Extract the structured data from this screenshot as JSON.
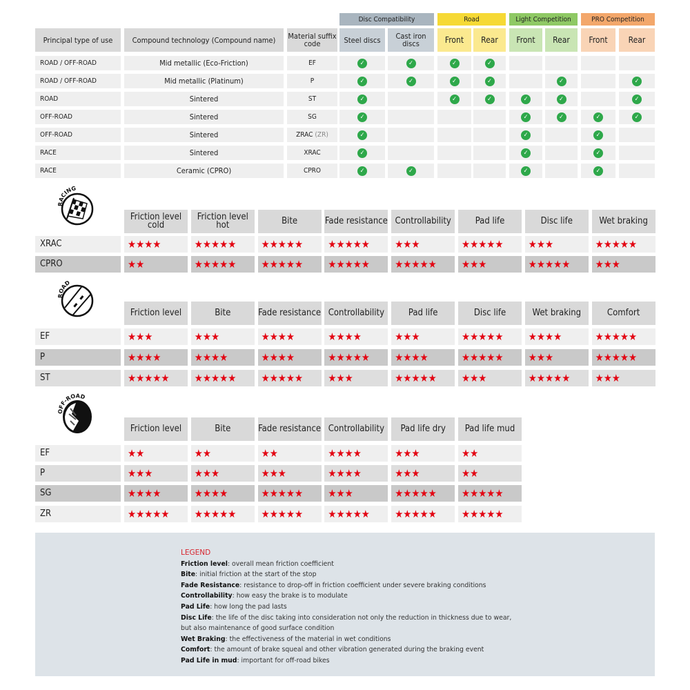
{
  "compat_table": {
    "groups": [
      {
        "label": "Disc Compatibility",
        "color": "#a9b5bf",
        "sub_color": "#c8d0d7"
      },
      {
        "label": "Road",
        "color": "#f6d935",
        "sub_color": "#fbe98f"
      },
      {
        "label": "Light Competition",
        "color": "#8fc965",
        "sub_color": "#c9e5b4"
      },
      {
        "label": "PRO Competition",
        "color": "#f3a76b",
        "sub_color": "#f9d4b6"
      }
    ],
    "headers": [
      "Principal type of use",
      "Compound technology (Compound name)",
      "Material suffix code",
      "Steel discs",
      "Cast iron discs",
      "Front",
      "Rear",
      "Front",
      "Rear",
      "Front",
      "Rear"
    ],
    "rows": [
      {
        "use": "ROAD / OFF-ROAD",
        "compound": "Mid metallic (Eco-Friction)",
        "code": "EF",
        "code_extra": "",
        "checks": [
          true,
          true,
          true,
          true,
          false,
          false,
          false,
          false
        ]
      },
      {
        "use": "ROAD / OFF-ROAD",
        "compound": "Mid metallic (Platinum)",
        "code": "P",
        "code_extra": "",
        "checks": [
          true,
          true,
          true,
          true,
          false,
          true,
          false,
          true
        ]
      },
      {
        "use": "ROAD",
        "compound": "Sintered",
        "code": "ST",
        "code_extra": "",
        "checks": [
          true,
          false,
          true,
          true,
          true,
          true,
          false,
          true
        ]
      },
      {
        "use": "OFF-ROAD",
        "compound": "Sintered",
        "code": "SG",
        "code_extra": "",
        "checks": [
          true,
          false,
          false,
          false,
          true,
          true,
          true,
          true
        ]
      },
      {
        "use": "OFF-ROAD",
        "compound": "Sintered",
        "code": "ZRAC",
        "code_extra": "(ZR)",
        "checks": [
          true,
          false,
          false,
          false,
          true,
          false,
          true,
          false
        ]
      },
      {
        "use": "RACE",
        "compound": "Sintered",
        "code": "XRAC",
        "code_extra": "",
        "checks": [
          true,
          false,
          false,
          false,
          true,
          false,
          true,
          false
        ]
      },
      {
        "use": "RACE",
        "compound": "Ceramic (CPRO)",
        "code": "CPRO",
        "code_extra": "",
        "checks": [
          true,
          true,
          false,
          false,
          true,
          false,
          true,
          false
        ]
      }
    ]
  },
  "rating_tables": [
    {
      "icon": "racing-flag-icon",
      "icon_label": "RACING",
      "headers": [
        "Friction level cold",
        "Friction level hot",
        "Bite",
        "Fade resistance",
        "Controllability",
        "Pad life",
        "Disc life",
        "Wet braking"
      ],
      "rows": [
        {
          "code": "XRAC",
          "shade": "light",
          "ratings": [
            4,
            5,
            5,
            5,
            3,
            5,
            3,
            5
          ]
        },
        {
          "code": "CPRO",
          "shade": "dark",
          "ratings": [
            2,
            5,
            5,
            5,
            5,
            3,
            5,
            3
          ]
        }
      ]
    },
    {
      "icon": "road-icon",
      "icon_label": "ROAD",
      "headers": [
        "Friction level",
        "Bite",
        "Fade resistance",
        "Controllability",
        "Pad life",
        "Disc life",
        "Wet braking",
        "Comfort"
      ],
      "rows": [
        {
          "code": "EF",
          "shade": "light",
          "ratings": [
            3,
            3,
            4,
            4,
            3,
            5,
            4,
            5
          ]
        },
        {
          "code": "P",
          "shade": "dark",
          "ratings": [
            4,
            4,
            4,
            5,
            4,
            5,
            3,
            5
          ]
        },
        {
          "code": "ST",
          "shade": "mid",
          "ratings": [
            5,
            5,
            5,
            3,
            5,
            3,
            5,
            3
          ]
        }
      ]
    },
    {
      "icon": "off-road-icon",
      "icon_label": "OFF-ROAD",
      "headers": [
        "Friction level",
        "Bite",
        "Fade resistance",
        "Controllability",
        "Pad life dry",
        "Pad life mud"
      ],
      "rows": [
        {
          "code": "EF",
          "shade": "light",
          "ratings": [
            2,
            2,
            2,
            4,
            3,
            2
          ]
        },
        {
          "code": "P",
          "shade": "mid",
          "ratings": [
            3,
            3,
            3,
            4,
            3,
            2
          ]
        },
        {
          "code": "SG",
          "shade": "dark",
          "ratings": [
            4,
            4,
            5,
            3,
            5,
            5
          ]
        },
        {
          "code": "ZR",
          "shade": "light",
          "ratings": [
            5,
            5,
            5,
            5,
            5,
            5
          ]
        }
      ]
    }
  ],
  "legend": {
    "title": "LEGEND",
    "items": [
      {
        "term": "Friction level",
        "desc": ": overall mean friction coefficient"
      },
      {
        "term": "Bite",
        "desc": ": initial friction at the start of the stop"
      },
      {
        "term": "Fade Resistance",
        "desc": ": resistance to drop-off in friction coefficient under severe braking conditions"
      },
      {
        "term": "Controllability",
        "desc": ": how easy the brake is to modulate"
      },
      {
        "term": "Pad Life",
        "desc": ": how long the pad lasts"
      },
      {
        "term": "Disc Life",
        "desc": ": the life of the disc taking into consideration not only the reduction in thickness due to wear,"
      },
      {
        "term": "",
        "desc": "but also maintenance of good surface condition"
      },
      {
        "term": "Wet Braking",
        "desc": ": the effectiveness of the material in wet conditions"
      },
      {
        "term": "Comfort",
        "desc": ": the amount of brake squeal and other vibration generated during the braking event"
      },
      {
        "term": "Pad Life in mud",
        "desc": ": important for off-road bikes"
      }
    ]
  },
  "colors": {
    "star": "#e30613",
    "check": "#2ea84a",
    "legend_bg": "#dde3e8",
    "legend_title": "#d7262f"
  }
}
